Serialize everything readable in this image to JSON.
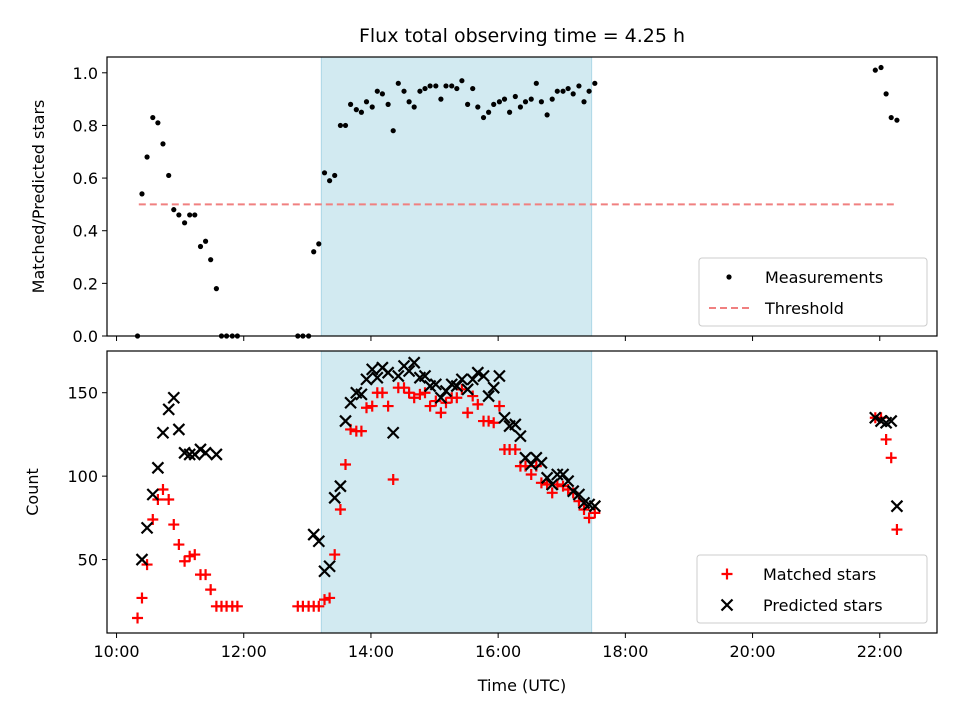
{
  "chart_data": {
    "title": "Flux total observing time = 4.25 h",
    "xlabel": "Time (UTC)",
    "x_ticks": [
      "10:00",
      "12:00",
      "14:00",
      "16:00",
      "18:00",
      "20:00",
      "22:00"
    ],
    "x_unit": "hours UTC",
    "xlim": [
      9.85,
      22.9
    ],
    "shaded_interval": [
      13.22,
      17.47
    ],
    "shade_color": "#add8e6",
    "panels": [
      {
        "type": "scatter",
        "ylabel": "Matched/Predicted stars",
        "ylim": [
          0.0,
          1.06
        ],
        "y_ticks": [
          "0.0",
          "0.2",
          "0.4",
          "0.6",
          "0.8",
          "1.0"
        ],
        "legend_position": "lower right",
        "series": [
          {
            "name": "Measurements",
            "marker": "dot",
            "color": "#000000",
            "points": [
              [
                10.33,
                0.0
              ],
              [
                10.4,
                0.54
              ],
              [
                10.48,
                0.68
              ],
              [
                10.57,
                0.83
              ],
              [
                10.65,
                0.81
              ],
              [
                10.73,
                0.73
              ],
              [
                10.82,
                0.61
              ],
              [
                10.9,
                0.48
              ],
              [
                10.98,
                0.46
              ],
              [
                11.07,
                0.43
              ],
              [
                11.15,
                0.46
              ],
              [
                11.23,
                0.46
              ],
              [
                11.32,
                0.34
              ],
              [
                11.4,
                0.36
              ],
              [
                11.48,
                0.29
              ],
              [
                11.57,
                0.18
              ],
              [
                11.65,
                0.0
              ],
              [
                11.73,
                0.0
              ],
              [
                11.82,
                0.0
              ],
              [
                11.9,
                0.0
              ],
              [
                12.85,
                0.0
              ],
              [
                12.93,
                0.0
              ],
              [
                13.02,
                0.0
              ],
              [
                13.1,
                0.32
              ],
              [
                13.18,
                0.35
              ],
              [
                13.27,
                0.62
              ],
              [
                13.35,
                0.59
              ],
              [
                13.43,
                0.61
              ],
              [
                13.52,
                0.8
              ],
              [
                13.6,
                0.8
              ],
              [
                13.68,
                0.88
              ],
              [
                13.77,
                0.86
              ],
              [
                13.85,
                0.85
              ],
              [
                13.93,
                0.89
              ],
              [
                14.02,
                0.87
              ],
              [
                14.1,
                0.93
              ],
              [
                14.18,
                0.92
              ],
              [
                14.27,
                0.88
              ],
              [
                14.35,
                0.78
              ],
              [
                14.43,
                0.96
              ],
              [
                14.52,
                0.93
              ],
              [
                14.6,
                0.89
              ],
              [
                14.68,
                0.87
              ],
              [
                14.77,
                0.93
              ],
              [
                14.85,
                0.94
              ],
              [
                14.93,
                0.95
              ],
              [
                15.02,
                0.95
              ],
              [
                15.1,
                0.9
              ],
              [
                15.18,
                0.95
              ],
              [
                15.27,
                0.95
              ],
              [
                15.35,
                0.94
              ],
              [
                15.43,
                0.97
              ],
              [
                15.52,
                0.88
              ],
              [
                15.6,
                0.94
              ],
              [
                15.68,
                0.87
              ],
              [
                15.77,
                0.83
              ],
              [
                15.85,
                0.85
              ],
              [
                15.93,
                0.88
              ],
              [
                16.02,
                0.89
              ],
              [
                16.1,
                0.9
              ],
              [
                16.18,
                0.85
              ],
              [
                16.27,
                0.91
              ],
              [
                16.35,
                0.87
              ],
              [
                16.43,
                0.89
              ],
              [
                16.52,
                0.9
              ],
              [
                16.6,
                0.96
              ],
              [
                16.68,
                0.89
              ],
              [
                16.77,
                0.84
              ],
              [
                16.85,
                0.9
              ],
              [
                16.93,
                0.93
              ],
              [
                17.02,
                0.93
              ],
              [
                17.1,
                0.94
              ],
              [
                17.18,
                0.92
              ],
              [
                17.27,
                0.95
              ],
              [
                17.35,
                0.89
              ],
              [
                17.43,
                0.93
              ],
              [
                17.52,
                0.96
              ],
              [
                21.93,
                1.01
              ],
              [
                22.02,
                1.02
              ],
              [
                22.1,
                0.92
              ],
              [
                22.18,
                0.83
              ],
              [
                22.27,
                0.82
              ]
            ]
          },
          {
            "name": "Threshold",
            "type": "line",
            "style": "dashed",
            "color": "#f08080",
            "points": [
              [
                10.35,
                0.5
              ],
              [
                22.25,
                0.5
              ]
            ]
          }
        ]
      },
      {
        "type": "scatter",
        "ylabel": "Count",
        "ylim": [
          6,
          175
        ],
        "y_ticks": [
          "50",
          "100",
          "150"
        ],
        "y_tick_values": [
          50,
          100,
          150
        ],
        "legend_position": "lower right",
        "series": [
          {
            "name": "Matched stars",
            "marker": "plus",
            "color": "#ff0000",
            "points": [
              [
                10.33,
                15
              ],
              [
                10.4,
                27
              ],
              [
                10.48,
                47
              ],
              [
                10.57,
                74
              ],
              [
                10.65,
                86
              ],
              [
                10.73,
                92
              ],
              [
                10.82,
                86
              ],
              [
                10.9,
                71
              ],
              [
                10.98,
                59
              ],
              [
                11.07,
                49
              ],
              [
                11.15,
                52
              ],
              [
                11.23,
                53
              ],
              [
                11.32,
                41
              ],
              [
                11.4,
                41
              ],
              [
                11.48,
                32
              ],
              [
                11.57,
                22
              ],
              [
                11.65,
                22
              ],
              [
                11.73,
                22
              ],
              [
                11.82,
                22
              ],
              [
                11.9,
                22
              ],
              [
                12.85,
                22
              ],
              [
                12.93,
                22
              ],
              [
                13.02,
                22
              ],
              [
                13.1,
                22
              ],
              [
                13.18,
                22
              ],
              [
                13.27,
                26
              ],
              [
                13.35,
                27
              ],
              [
                13.43,
                53
              ],
              [
                13.52,
                80
              ],
              [
                13.6,
                107
              ],
              [
                13.68,
                128
              ],
              [
                13.77,
                127
              ],
              [
                13.85,
                127
              ],
              [
                13.93,
                141
              ],
              [
                14.02,
                142
              ],
              [
                14.1,
                150
              ],
              [
                14.18,
                150
              ],
              [
                14.27,
                142
              ],
              [
                14.35,
                98
              ],
              [
                14.43,
                153
              ],
              [
                14.52,
                153
              ],
              [
                14.6,
                150
              ],
              [
                14.68,
                147
              ],
              [
                14.77,
                149
              ],
              [
                14.85,
                150
              ],
              [
                14.93,
                142
              ],
              [
                15.02,
                145
              ],
              [
                15.1,
                138
              ],
              [
                15.18,
                144
              ],
              [
                15.27,
                147
              ],
              [
                15.35,
                147
              ],
              [
                15.43,
                152
              ],
              [
                15.52,
                138
              ],
              [
                15.6,
                148
              ],
              [
                15.68,
                143
              ],
              [
                15.77,
                133
              ],
              [
                15.85,
                133
              ],
              [
                15.93,
                132
              ],
              [
                16.02,
                142
              ],
              [
                16.1,
                116
              ],
              [
                16.18,
                116
              ],
              [
                16.27,
                116
              ],
              [
                16.35,
                106
              ],
              [
                16.43,
                106
              ],
              [
                16.52,
                101
              ],
              [
                16.6,
                106
              ],
              [
                16.68,
                96
              ],
              [
                16.77,
                95
              ],
              [
                16.85,
                90
              ],
              [
                16.93,
                95
              ],
              [
                17.02,
                94
              ],
              [
                17.1,
                92
              ],
              [
                17.18,
                90
              ],
              [
                17.27,
                85
              ],
              [
                17.35,
                80
              ],
              [
                17.43,
                75
              ],
              [
                17.52,
                78
              ],
              [
                21.93,
                135
              ],
              [
                22.02,
                135
              ],
              [
                22.1,
                122
              ],
              [
                22.18,
                111
              ],
              [
                22.27,
                68
              ]
            ]
          },
          {
            "name": "Predicted stars",
            "marker": "x",
            "color": "#000000",
            "points": [
              [
                10.4,
                50
              ],
              [
                10.48,
                69
              ],
              [
                10.57,
                89
              ],
              [
                10.65,
                105
              ],
              [
                10.73,
                126
              ],
              [
                10.82,
                140
              ],
              [
                10.9,
                147
              ],
              [
                10.98,
                128
              ],
              [
                11.07,
                114
              ],
              [
                11.15,
                113
              ],
              [
                11.23,
                113
              ],
              [
                11.32,
                116
              ],
              [
                11.4,
                114
              ],
              [
                11.57,
                113
              ],
              [
                13.1,
                65
              ],
              [
                13.18,
                61
              ],
              [
                13.27,
                43
              ],
              [
                13.35,
                46
              ],
              [
                13.43,
                87
              ],
              [
                13.52,
                94
              ],
              [
                13.6,
                133
              ],
              [
                13.68,
                144
              ],
              [
                13.77,
                150
              ],
              [
                13.85,
                149
              ],
              [
                13.93,
                158
              ],
              [
                14.02,
                164
              ],
              [
                14.1,
                159
              ],
              [
                14.18,
                165
              ],
              [
                14.27,
                162
              ],
              [
                14.35,
                126
              ],
              [
                14.43,
                160
              ],
              [
                14.52,
                166
              ],
              [
                14.6,
                163
              ],
              [
                14.68,
                168
              ],
              [
                14.77,
                159
              ],
              [
                14.85,
                160
              ],
              [
                14.93,
                154
              ],
              [
                15.02,
                155
              ],
              [
                15.1,
                147
              ],
              [
                15.18,
                151
              ],
              [
                15.27,
                155
              ],
              [
                15.35,
                154
              ],
              [
                15.43,
                158
              ],
              [
                15.52,
                152
              ],
              [
                15.6,
                158
              ],
              [
                15.68,
                162
              ],
              [
                15.77,
                160
              ],
              [
                15.85,
                148
              ],
              [
                15.93,
                153
              ],
              [
                16.02,
                160
              ],
              [
                16.1,
                135
              ],
              [
                16.18,
                130
              ],
              [
                16.27,
                131
              ],
              [
                16.35,
                124
              ],
              [
                16.43,
                111
              ],
              [
                16.52,
                107
              ],
              [
                16.6,
                111
              ],
              [
                16.68,
                108
              ],
              [
                16.77,
                99
              ],
              [
                16.85,
                95
              ],
              [
                16.93,
                101
              ],
              [
                17.02,
                101
              ],
              [
                17.1,
                97
              ],
              [
                17.18,
                91
              ],
              [
                17.27,
                89
              ],
              [
                17.35,
                84
              ],
              [
                17.43,
                83
              ],
              [
                17.52,
                82
              ],
              [
                21.93,
                135
              ],
              [
                22.02,
                133
              ],
              [
                22.1,
                132
              ],
              [
                22.18,
                133
              ],
              [
                22.27,
                82
              ]
            ]
          }
        ]
      }
    ]
  }
}
